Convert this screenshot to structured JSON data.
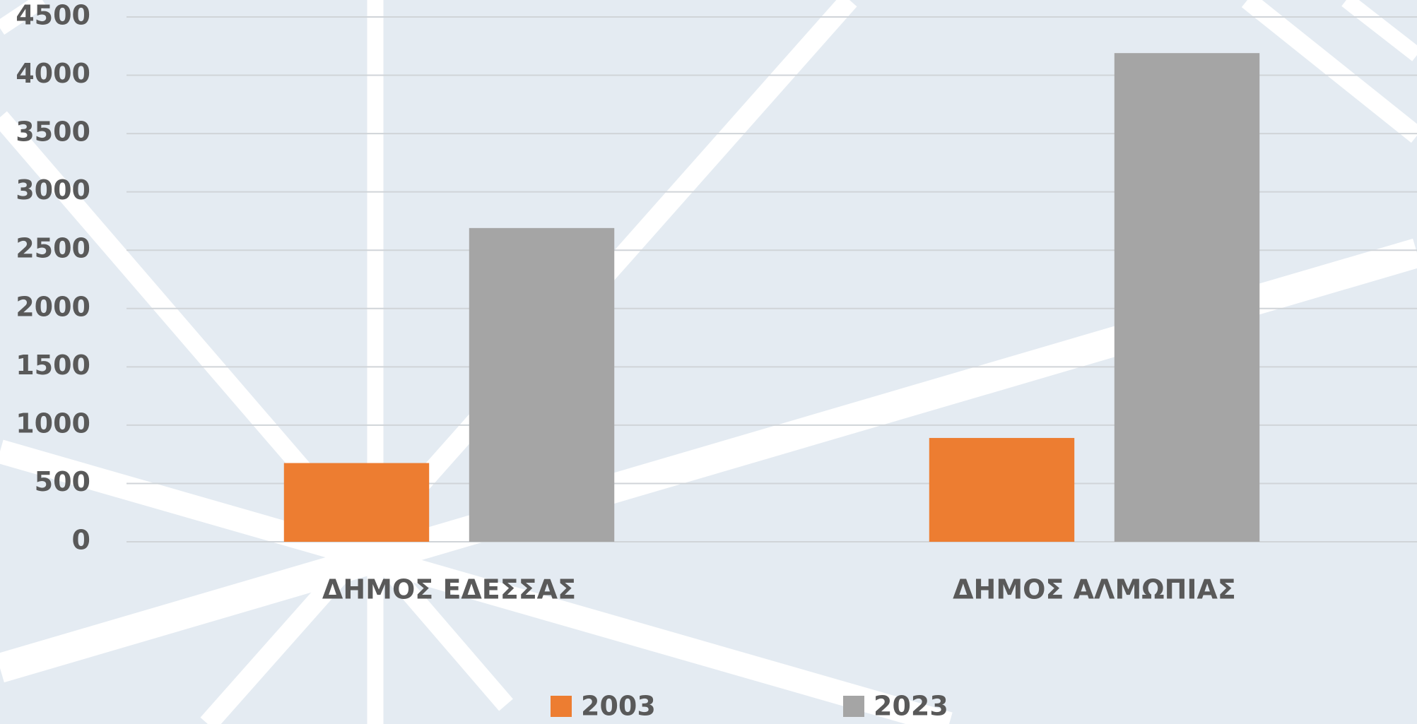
{
  "chart_data": {
    "type": "bar",
    "categories": [
      "ΔΗΜΟΣ ΕΔΕΣΣΑΣ",
      "ΔΗΜΟΣ ΑΛΜΩΠΙΑΣ"
    ],
    "series": [
      {
        "name": "2003",
        "color": "#ed7d31",
        "values": [
          675,
          890
        ]
      },
      {
        "name": "2023",
        "color": "#a5a5a5",
        "values": [
          2690,
          4190
        ]
      }
    ],
    "ylim": [
      0,
      4500
    ],
    "yticks": [
      0,
      500,
      1000,
      1500,
      2000,
      2500,
      3000,
      3500,
      4000,
      4500
    ],
    "grid": true,
    "legend": "bottom"
  }
}
